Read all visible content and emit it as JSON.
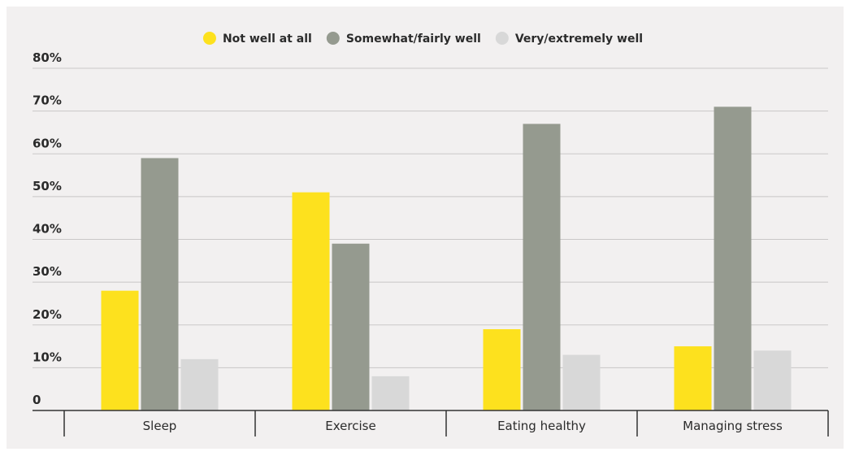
{
  "chart_data": {
    "type": "bar",
    "title": "",
    "xlabel": "",
    "ylabel": "",
    "categories": [
      "Sleep",
      "Exercise",
      "Eating healthy",
      "Managing stress"
    ],
    "series": [
      {
        "name": "Not well at all",
        "color": "#fde11e",
        "values": [
          28,
          51,
          19,
          15
        ]
      },
      {
        "name": "Somewhat/fairly well",
        "color": "#959a8f",
        "values": [
          59,
          39,
          67,
          71
        ]
      },
      {
        "name": "Very/extremely well",
        "color": "#d8d8d8",
        "values": [
          12,
          8,
          13,
          14
        ]
      }
    ],
    "ylim": [
      0,
      80
    ],
    "yticks": [
      {
        "value": 0,
        "label": "0"
      },
      {
        "value": 10,
        "label": "10%"
      },
      {
        "value": 20,
        "label": "20%"
      },
      {
        "value": 30,
        "label": "30%"
      },
      {
        "value": 40,
        "label": "40%"
      },
      {
        "value": 50,
        "label": "50%"
      },
      {
        "value": 60,
        "label": "60%"
      },
      {
        "value": 70,
        "label": "70%"
      },
      {
        "value": 80,
        "label": "80%"
      }
    ],
    "grid": true,
    "legend_position": "top-center"
  }
}
